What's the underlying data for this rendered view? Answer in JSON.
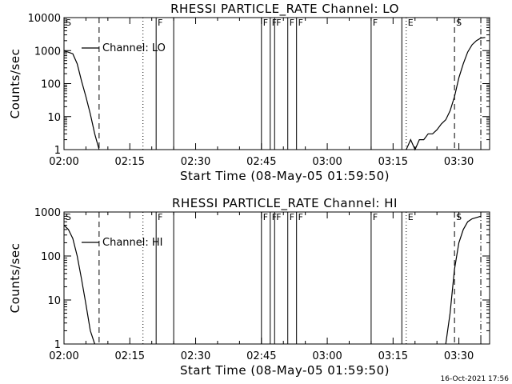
{
  "footer_timestamp": "16-Oct-2021 17:56",
  "line_color": "#000000",
  "background_color": "#ffffff",
  "chart_data": [
    {
      "type": "line",
      "title": "RHESSI PARTICLE_RATE Channel: LO",
      "xlabel": "Start Time (08-May-05 01:59:50)",
      "ylabel": "Counts/sec",
      "yscale": "log",
      "xlim": [
        "02:00",
        "03:37"
      ],
      "ylim": [
        1,
        10000
      ],
      "x_ticks": [
        "02:00",
        "02:15",
        "02:30",
        "02:45",
        "03:00",
        "03:15",
        "03:30"
      ],
      "y_ticks": [
        "1",
        "10",
        "100",
        "1000",
        "10000"
      ],
      "legend": "top-left",
      "series": [
        {
          "name": "Channel: LO",
          "x": [
            "02:00",
            "02:02",
            "02:03",
            "02:04",
            "02:05",
            "02:06",
            "02:07",
            "02:08",
            "03:18",
            "03:19",
            "03:20",
            "03:21",
            "03:22",
            "03:23",
            "03:24",
            "03:25",
            "03:26",
            "03:27",
            "03:28",
            "03:29",
            "03:30",
            "03:31",
            "03:32",
            "03:33",
            "03:34",
            "03:35",
            "03:36"
          ],
          "y": [
            1000,
            800,
            400,
            120,
            40,
            12,
            3,
            1,
            1,
            2,
            1,
            2,
            2,
            3,
            3,
            4,
            6,
            8,
            15,
            40,
            150,
            400,
            900,
            1500,
            2000,
            2400,
            2500
          ]
        }
      ],
      "markers": [
        {
          "x": "02:00",
          "text": "S",
          "style": "solid"
        },
        {
          "x": "02:08",
          "text": "",
          "style": "dashed"
        },
        {
          "x": "02:18",
          "text": "",
          "style": "dotted"
        },
        {
          "x": "02:21",
          "text": "F",
          "style": "solid"
        },
        {
          "x": "02:25",
          "text": "",
          "style": "solid"
        },
        {
          "x": "02:45",
          "text": "F",
          "style": "solid"
        },
        {
          "x": "02:47",
          "text": "F",
          "style": "solid"
        },
        {
          "x": "02:48",
          "text": "F",
          "style": "solid"
        },
        {
          "x": "02:51",
          "text": "F",
          "style": "solid"
        },
        {
          "x": "02:53",
          "text": "F",
          "style": "solid"
        },
        {
          "x": "03:10",
          "text": "F",
          "style": "solid"
        },
        {
          "x": "03:17",
          "text": "",
          "style": "solid"
        },
        {
          "x": "03:18",
          "text": "E",
          "style": "dotted"
        },
        {
          "x": "03:29",
          "text": "S",
          "style": "dashed"
        },
        {
          "x": "03:35",
          "text": "",
          "style": "dashdot"
        }
      ]
    },
    {
      "type": "line",
      "title": "RHESSI PARTICLE_RATE Channel: HI",
      "xlabel": "Start Time (08-May-05 01:59:50)",
      "ylabel": "Counts/sec",
      "yscale": "log",
      "xlim": [
        "02:00",
        "03:37"
      ],
      "ylim": [
        1,
        1000
      ],
      "x_ticks": [
        "02:00",
        "02:15",
        "02:30",
        "02:45",
        "03:00",
        "03:15",
        "03:30"
      ],
      "y_ticks": [
        "1",
        "10",
        "100",
        "1000"
      ],
      "legend": "top-left",
      "series": [
        {
          "name": "Channel: HI",
          "x": [
            "02:00",
            "02:01",
            "02:02",
            "02:03",
            "02:04",
            "02:05",
            "02:06",
            "02:07",
            "03:27",
            "03:28",
            "03:29",
            "03:30",
            "03:31",
            "03:32",
            "03:33",
            "03:34",
            "03:35"
          ],
          "y": [
            500,
            400,
            250,
            100,
            30,
            8,
            2,
            1,
            1,
            5,
            50,
            200,
            400,
            600,
            700,
            750,
            800
          ]
        }
      ],
      "markers": [
        {
          "x": "02:00",
          "text": "S",
          "style": "solid"
        },
        {
          "x": "02:08",
          "text": "",
          "style": "dashed"
        },
        {
          "x": "02:18",
          "text": "",
          "style": "dotted"
        },
        {
          "x": "02:21",
          "text": "F",
          "style": "solid"
        },
        {
          "x": "02:25",
          "text": "",
          "style": "solid"
        },
        {
          "x": "02:45",
          "text": "F",
          "style": "solid"
        },
        {
          "x": "02:47",
          "text": "F",
          "style": "solid"
        },
        {
          "x": "02:48",
          "text": "F",
          "style": "solid"
        },
        {
          "x": "02:51",
          "text": "F",
          "style": "solid"
        },
        {
          "x": "02:53",
          "text": "F",
          "style": "solid"
        },
        {
          "x": "03:10",
          "text": "F",
          "style": "solid"
        },
        {
          "x": "03:17",
          "text": "",
          "style": "solid"
        },
        {
          "x": "03:18",
          "text": "E",
          "style": "dotted"
        },
        {
          "x": "03:29",
          "text": "S",
          "style": "dashed"
        },
        {
          "x": "03:35",
          "text": "",
          "style": "dashdot"
        }
      ]
    }
  ]
}
